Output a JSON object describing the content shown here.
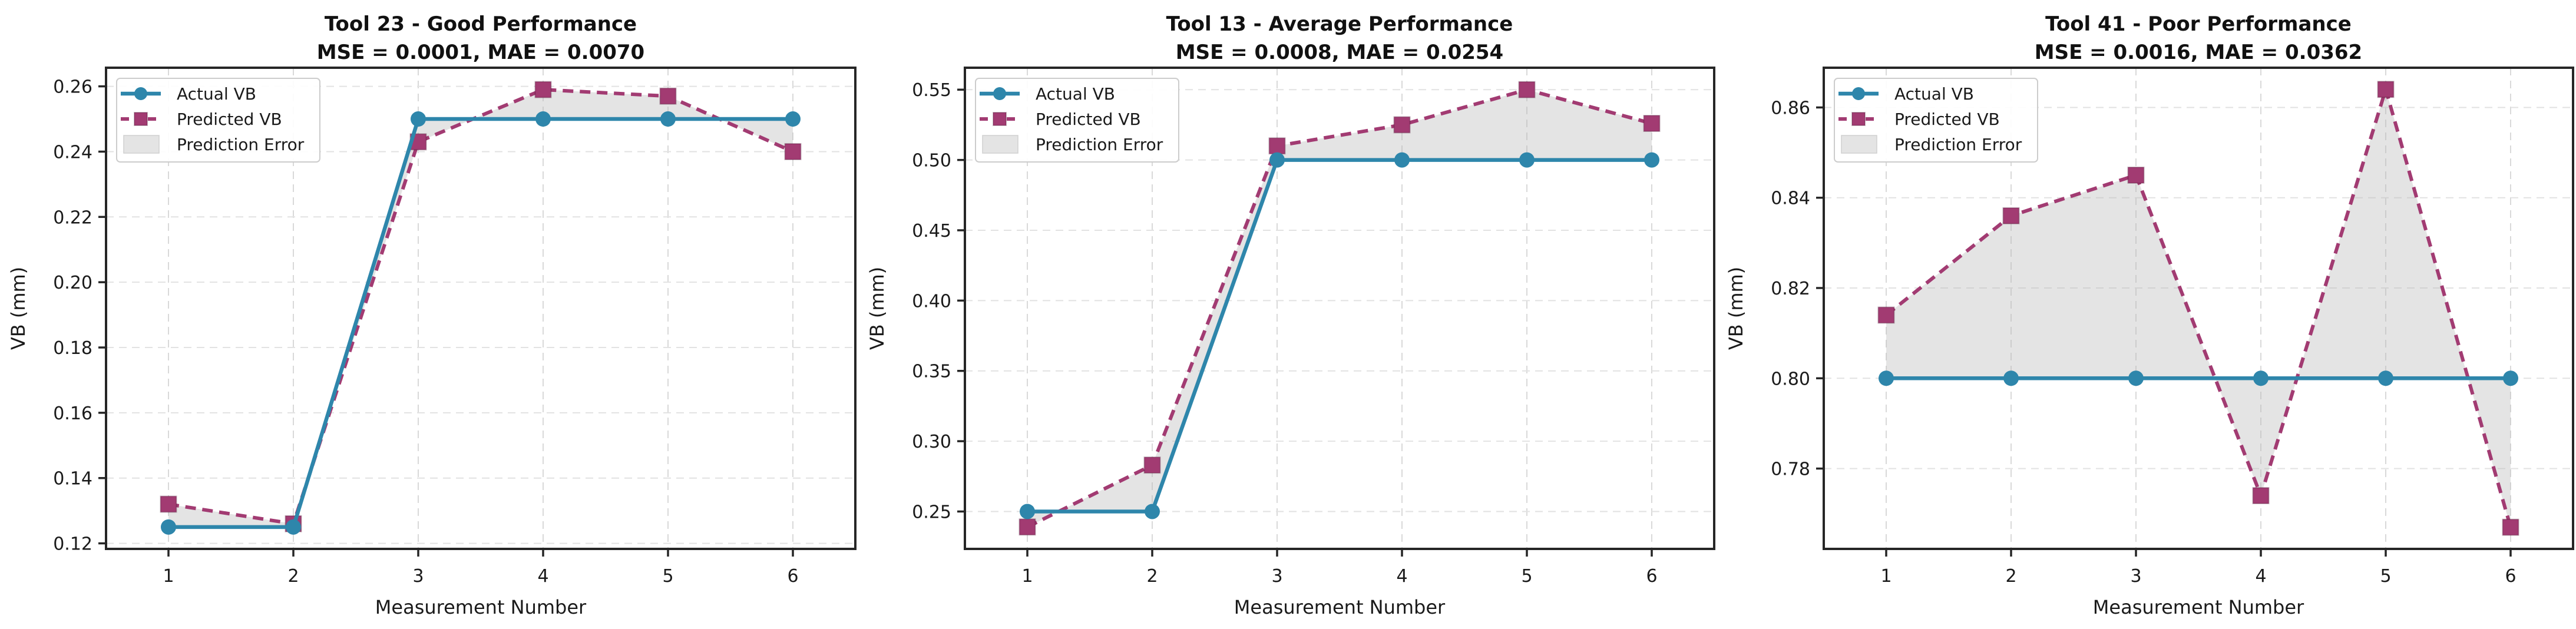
{
  "figure": {
    "background": "#ffffff",
    "n_subplots": 3
  },
  "colors": {
    "actual_line": "#2E86AB",
    "predicted_line": "#A23B72",
    "predicted_marker_edge": "rgba(70,15,45,0.30)",
    "error_fill": "#b9b9b9",
    "spine": "#262626",
    "tick_text": "#1a1a1a",
    "title_text": "#111111",
    "grid_vertical": "#d9d9d9",
    "grid_horizontal": "#e2e2e2",
    "legend_border": "#cccccc",
    "legend_bg": "#ffffff"
  },
  "legend": {
    "position": "upper-left",
    "items": [
      {
        "label": "Actual VB",
        "swatch": "line-circle"
      },
      {
        "label": "Predicted VB",
        "swatch": "dashed-line-square"
      },
      {
        "label": "Prediction Error",
        "swatch": "gray-patch"
      }
    ]
  },
  "chart_data": [
    {
      "type": "line",
      "title": "Tool 23 - Good Performance",
      "subtitle": "MSE = 0.0001, MAE = 0.0070",
      "xlabel": "Measurement Number",
      "ylabel": "VB (mm)",
      "x": [
        1,
        2,
        3,
        4,
        5,
        6
      ],
      "xlim": [
        0.5,
        6.5
      ],
      "ylim": [
        0.1183,
        0.2657
      ],
      "yticks": [
        0.12,
        0.14,
        0.16,
        0.18,
        0.2,
        0.22,
        0.24,
        0.26
      ],
      "ytick_decimals": 2,
      "grid": true,
      "legend_position": "upper left",
      "series": [
        {
          "name": "Actual VB",
          "marker": "circle",
          "linestyle": "solid",
          "values": [
            0.125,
            0.125,
            0.25,
            0.25,
            0.25,
            0.25
          ]
        },
        {
          "name": "Predicted VB",
          "marker": "square",
          "linestyle": "dashed",
          "values": [
            0.132,
            0.126,
            0.243,
            0.259,
            0.257,
            0.24
          ]
        }
      ],
      "fill_between": {
        "name": "Prediction Error"
      }
    },
    {
      "type": "line",
      "title": "Tool 13 - Average Performance",
      "subtitle": "MSE = 0.0008, MAE = 0.0254",
      "xlabel": "Measurement Number",
      "ylabel": "VB (mm)",
      "x": [
        1,
        2,
        3,
        4,
        5,
        6
      ],
      "xlim": [
        0.5,
        6.5
      ],
      "ylim": [
        0.2234,
        0.5656
      ],
      "yticks": [
        0.25,
        0.3,
        0.35,
        0.4,
        0.45,
        0.5,
        0.55
      ],
      "ytick_decimals": 2,
      "grid": true,
      "legend_position": "upper left",
      "series": [
        {
          "name": "Actual VB",
          "marker": "circle",
          "linestyle": "solid",
          "values": [
            0.25,
            0.25,
            0.5,
            0.5,
            0.5,
            0.5
          ]
        },
        {
          "name": "Predicted VB",
          "marker": "square",
          "linestyle": "dashed",
          "values": [
            0.239,
            0.283,
            0.51,
            0.525,
            0.55,
            0.526
          ]
        }
      ],
      "fill_between": {
        "name": "Prediction Error"
      }
    },
    {
      "type": "line",
      "title": "Tool 41 - Poor Performance",
      "subtitle": "MSE = 0.0016, MAE = 0.0362",
      "xlabel": "Measurement Number",
      "ylabel": "VB (mm)",
      "x": [
        1,
        2,
        3,
        4,
        5,
        6
      ],
      "xlim": [
        0.5,
        6.5
      ],
      "ylim": [
        0.7622,
        0.8688
      ],
      "yticks": [
        0.78,
        0.8,
        0.82,
        0.84,
        0.86
      ],
      "ytick_decimals": 2,
      "grid": true,
      "legend_position": "upper left",
      "series": [
        {
          "name": "Actual VB",
          "marker": "circle",
          "linestyle": "solid",
          "values": [
            0.8,
            0.8,
            0.8,
            0.8,
            0.8,
            0.8
          ]
        },
        {
          "name": "Predicted VB",
          "marker": "square",
          "linestyle": "dashed",
          "values": [
            0.814,
            0.836,
            0.845,
            0.774,
            0.864,
            0.767
          ]
        }
      ],
      "fill_between": {
        "name": "Prediction Error"
      }
    }
  ]
}
